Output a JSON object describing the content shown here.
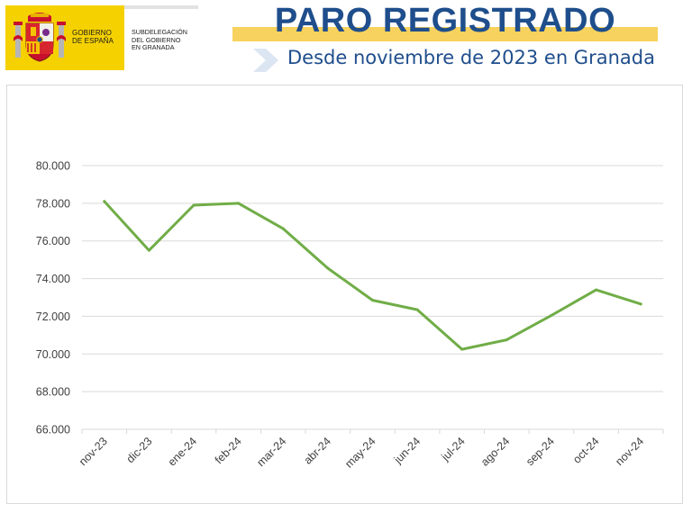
{
  "header": {
    "gov_line1": "GOBIERNO",
    "gov_line2": "DE ESPAÑA",
    "sub_line1": "SUBDELEGACIÓN",
    "sub_line2": "DEL GOBIERNO",
    "sub_line3": "EN GRANADA",
    "title": "PARO REGISTRADO",
    "subtitle": "Desde noviembre de 2023 en Granada"
  },
  "colors": {
    "title": "#1f4e8c",
    "title_band": "#f7d25e",
    "logo_yellow": "#f5d100",
    "line": "#70ad47",
    "grid": "#d9d9d9"
  },
  "chart_data": {
    "type": "line",
    "categories": [
      "nov-23",
      "dic-23",
      "ene-24",
      "feb-24",
      "mar-24",
      "abr-24",
      "may-24",
      "jun-24",
      "jul-24",
      "ago-24",
      "sep-24",
      "oct-24",
      "nov-24"
    ],
    "series": [
      {
        "values": [
          78100,
          75500,
          77900,
          78000,
          76650,
          74550,
          72850,
          72350,
          70250,
          70750,
          72050,
          73400,
          72650
        ]
      }
    ],
    "ylim": [
      66000,
      80000
    ],
    "yticks": [
      80000,
      78000,
      76000,
      74000,
      72000,
      70000,
      68000,
      66000
    ],
    "ytick_labels": [
      "80.000",
      "78.000",
      "76.000",
      "74.000",
      "72.000",
      "70.000",
      "68.000",
      "66.000"
    ],
    "grid": true,
    "legend": "none",
    "title": "",
    "xlabel": "",
    "ylabel": ""
  }
}
